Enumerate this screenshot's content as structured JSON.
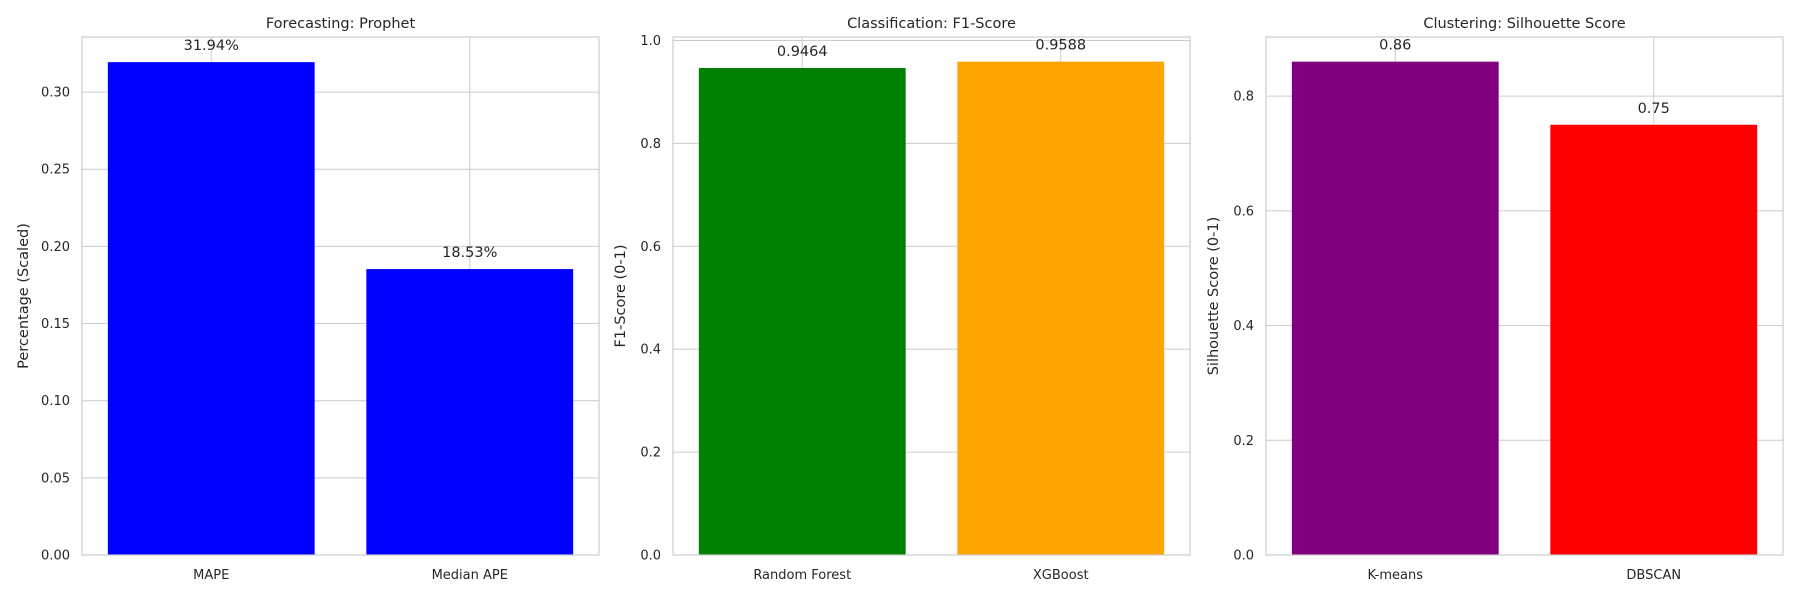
{
  "chart_data": [
    {
      "type": "bar",
      "title": "Forecasting: Prophet",
      "xlabel": "",
      "ylabel": "Percentage (Scaled)",
      "categories": [
        "MAPE",
        "Median APE"
      ],
      "values": [
        0.3194,
        0.1853
      ],
      "value_labels": [
        "31.94%",
        "18.53%"
      ],
      "colors": [
        "#0000ff",
        "#0000ff"
      ],
      "ylim": [
        0,
        0.3357
      ],
      "yticks": [
        0,
        0.05,
        0.1,
        0.15,
        0.2,
        0.25,
        0.3
      ],
      "ytick_labels": [
        "0.00",
        "0.05",
        "0.10",
        "0.15",
        "0.20",
        "0.25",
        "0.30"
      ],
      "grid": true
    },
    {
      "type": "bar",
      "title": "Classification: F1-Score",
      "xlabel": "",
      "ylabel": "F1-Score (0-1)",
      "categories": [
        "Random Forest",
        "XGBoost"
      ],
      "values": [
        0.9464,
        0.9588
      ],
      "value_labels": [
        "0.9464",
        "0.9588"
      ],
      "colors": [
        "#008000",
        "#ffa500"
      ],
      "ylim": [
        0,
        1.0067
      ],
      "yticks": [
        0,
        0.2,
        0.4,
        0.6,
        0.8,
        1.0
      ],
      "ytick_labels": [
        "0.0",
        "0.2",
        "0.4",
        "0.6",
        "0.8",
        "1.0"
      ],
      "grid": true
    },
    {
      "type": "bar",
      "title": "Clustering: Silhouette Score",
      "xlabel": "",
      "ylabel": "Silhouette Score (0-1)",
      "categories": [
        "K-means",
        "DBSCAN"
      ],
      "values": [
        0.86,
        0.75
      ],
      "value_labels": [
        "0.86",
        "0.75"
      ],
      "colors": [
        "#800080",
        "#ff0000"
      ],
      "ylim": [
        0,
        0.903
      ],
      "yticks": [
        0,
        0.2,
        0.4,
        0.6,
        0.8
      ],
      "ytick_labels": [
        "0.0",
        "0.2",
        "0.4",
        "0.6",
        "0.8"
      ],
      "grid": true
    }
  ]
}
